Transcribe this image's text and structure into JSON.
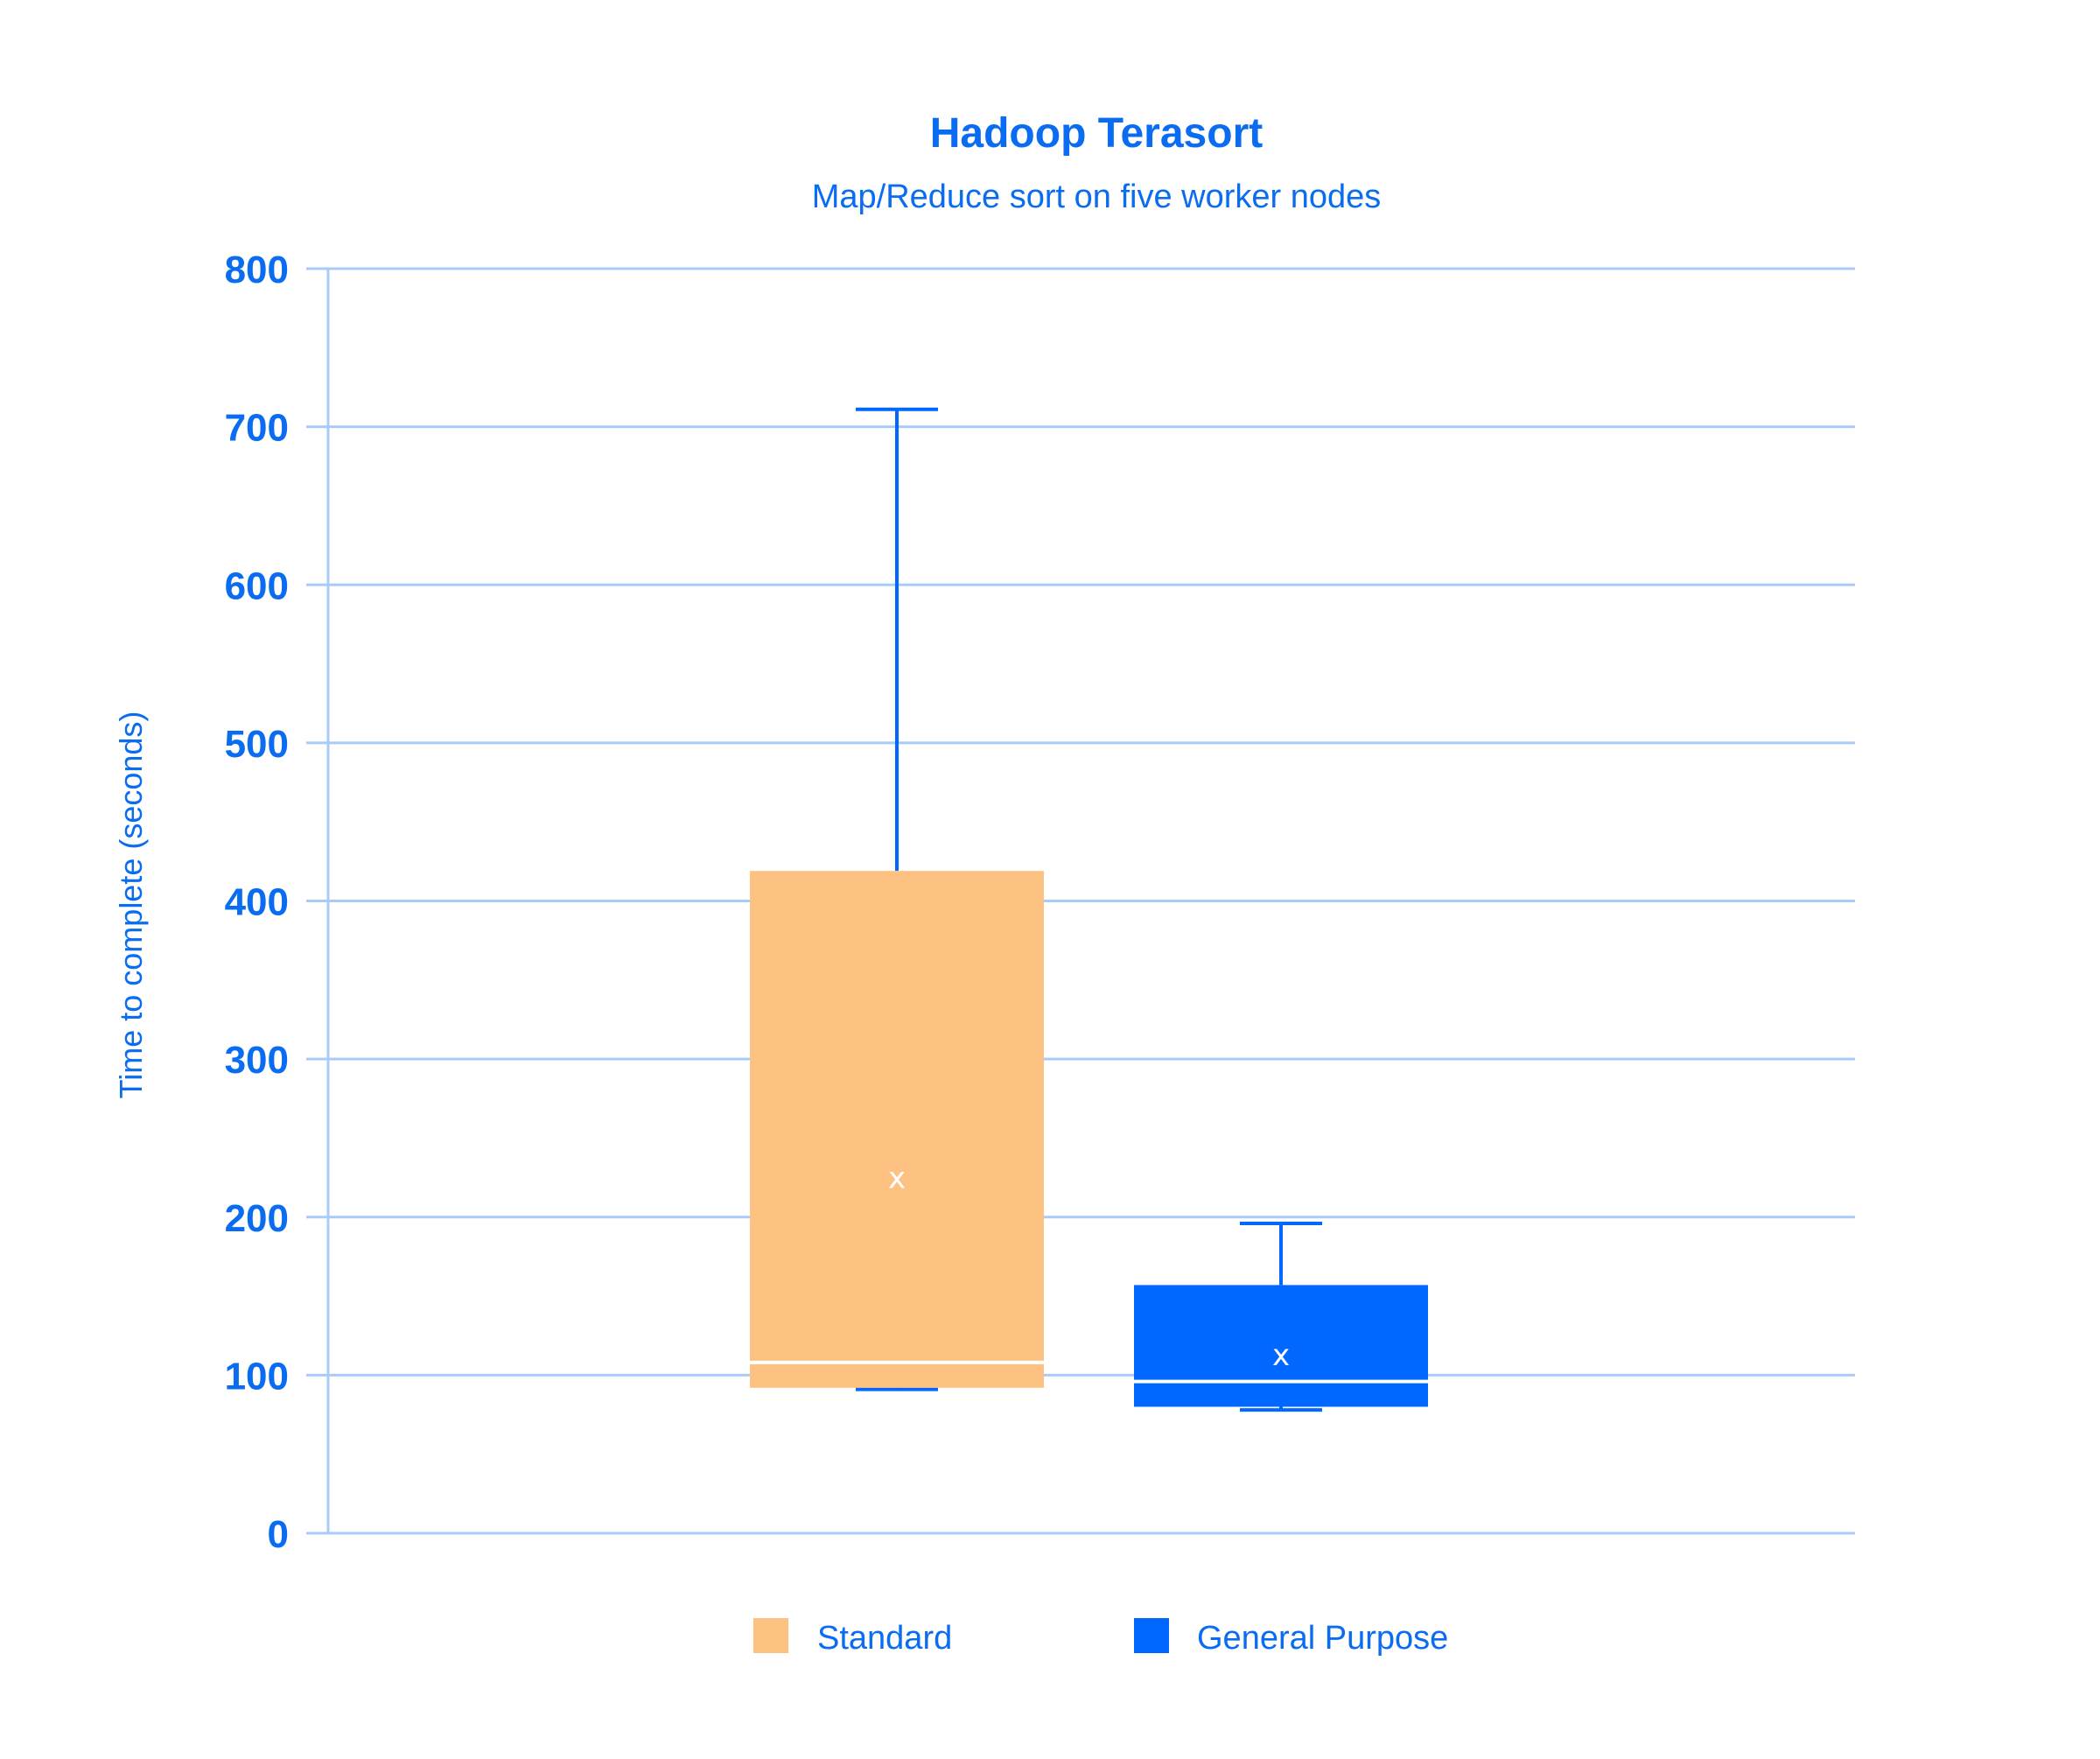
{
  "chart_data": {
    "type": "box",
    "title": "Hadoop Terasort",
    "subtitle": "Map/Reduce sort on five worker nodes",
    "ylabel": "Time to complete (seconds)",
    "ylim": [
      0,
      800
    ],
    "yticks": [
      0,
      100,
      200,
      300,
      400,
      500,
      600,
      700,
      800
    ],
    "grid": true,
    "legend_position": "bottom",
    "mean_marker": "x",
    "series": [
      {
        "name": "Standard",
        "color": "#FDC281",
        "min": 91,
        "q1": 92,
        "median": 108,
        "q3": 419,
        "max": 711,
        "mean": 225
      },
      {
        "name": "General Purpose",
        "color": "#0068FF",
        "min": 78,
        "q1": 80,
        "median": 96,
        "q3": 157,
        "max": 196,
        "mean": 113
      }
    ],
    "colors": {
      "text": "#0A6CF0",
      "grid": "#A9CBF9",
      "whisker": "#0068FF"
    }
  }
}
